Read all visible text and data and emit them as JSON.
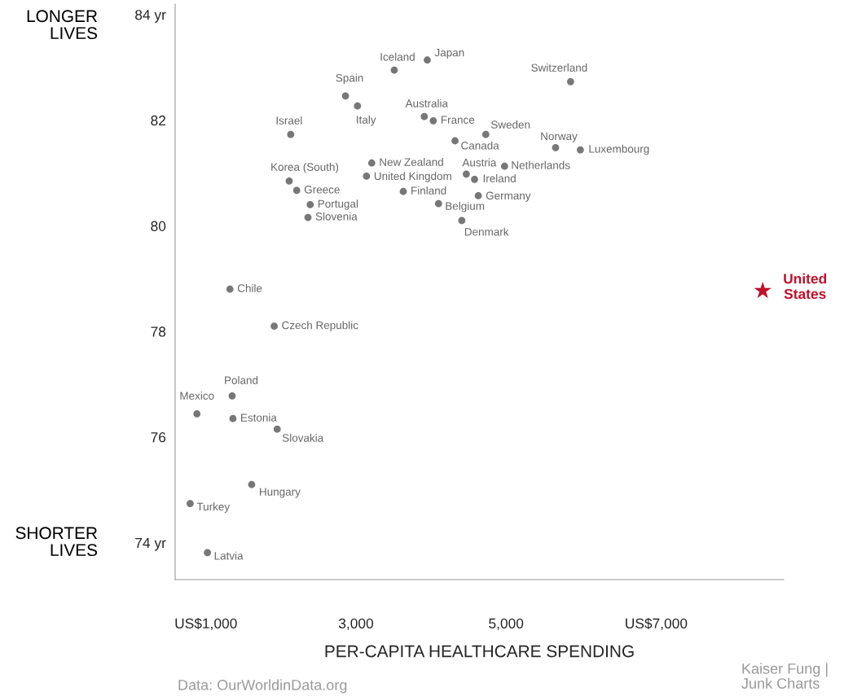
{
  "chart_data": {
    "type": "scatter",
    "xlabel": "PER-CAPITA HEALTHCARE SPENDING",
    "xlim": [
      590,
      8700
    ],
    "ylim": [
      73.3,
      84.2
    ],
    "xticks": [
      {
        "value": 1000,
        "label": "US$1,000"
      },
      {
        "value": 3000,
        "label": "3,000"
      },
      {
        "value": 5000,
        "label": "5,000"
      },
      {
        "value": 7000,
        "label": "US$7,000"
      }
    ],
    "yticks": [
      {
        "value": 74,
        "label": "74 yr"
      },
      76,
      78,
      80,
      82,
      {
        "value": 84,
        "label": "84 yr"
      }
    ],
    "grid": false,
    "legend": false,
    "marker": "circle",
    "annotations": [
      "LONGER\nLIVES",
      "SHORTER\nLIVES",
      "Data: OurWorldinData.org",
      "Kaiser Fung |\nJunk Charts"
    ],
    "series": [
      {
        "name": "Iceland",
        "color": "#777777",
        "x": [
          3510
        ],
        "values": [
          82.95
        ]
      },
      {
        "name": "Japan",
        "color": "#777777",
        "x": [
          3950
        ],
        "values": [
          83.14
        ]
      },
      {
        "name": "Switzerland",
        "color": "#777777",
        "x": [
          5860
        ],
        "values": [
          82.73
        ]
      },
      {
        "name": "Spain",
        "color": "#777777",
        "x": [
          2860
        ],
        "values": [
          82.46
        ]
      },
      {
        "name": "Italy",
        "color": "#777777",
        "x": [
          3020
        ],
        "values": [
          82.27
        ]
      },
      {
        "name": "Australia",
        "color": "#777777",
        "x": [
          3910
        ],
        "values": [
          82.07
        ]
      },
      {
        "name": "France",
        "color": "#777777",
        "x": [
          4030
        ],
        "values": [
          81.99
        ]
      },
      {
        "name": "Israel",
        "color": "#777777",
        "x": [
          2130
        ],
        "values": [
          81.73
        ]
      },
      {
        "name": "Sweden",
        "color": "#777777",
        "x": [
          4730
        ],
        "values": [
          81.73
        ]
      },
      {
        "name": "Canada",
        "color": "#777777",
        "x": [
          4320
        ],
        "values": [
          81.61
        ]
      },
      {
        "name": "Norway",
        "color": "#777777",
        "x": [
          5660
        ],
        "values": [
          81.48
        ]
      },
      {
        "name": "Luxembourg",
        "color": "#777777",
        "x": [
          5990
        ],
        "values": [
          81.44
        ]
      },
      {
        "name": "New Zealand",
        "color": "#777777",
        "x": [
          3210
        ],
        "values": [
          81.19
        ]
      },
      {
        "name": "Netherlands",
        "color": "#777777",
        "x": [
          4980
        ],
        "values": [
          81.13
        ]
      },
      {
        "name": "Austria",
        "color": "#777777",
        "x": [
          4470
        ],
        "values": [
          80.98
        ]
      },
      {
        "name": "United Kingdom",
        "color": "#777777",
        "x": [
          3140
        ],
        "values": [
          80.94
        ]
      },
      {
        "name": "Ireland",
        "color": "#777777",
        "x": [
          4580
        ],
        "values": [
          80.88
        ]
      },
      {
        "name": "Korea (South)",
        "color": "#777777",
        "x": [
          2110
        ],
        "values": [
          80.85
        ]
      },
      {
        "name": "Greece",
        "color": "#777777",
        "x": [
          2210
        ],
        "values": [
          80.67
        ]
      },
      {
        "name": "Finland",
        "color": "#777777",
        "x": [
          3630
        ],
        "values": [
          80.65
        ]
      },
      {
        "name": "Germany",
        "color": "#777777",
        "x": [
          4630
        ],
        "values": [
          80.57
        ]
      },
      {
        "name": "Belgium",
        "color": "#777777",
        "x": [
          4100
        ],
        "values": [
          80.42
        ]
      },
      {
        "name": "Portugal",
        "color": "#777777",
        "x": [
          2390
        ],
        "values": [
          80.4
        ]
      },
      {
        "name": "Slovenia",
        "color": "#777777",
        "x": [
          2360
        ],
        "values": [
          80.16
        ]
      },
      {
        "name": "Denmark",
        "color": "#777777",
        "x": [
          4410
        ],
        "values": [
          80.1
        ]
      },
      {
        "name": "Chile",
        "color": "#777777",
        "x": [
          1320
        ],
        "values": [
          78.8
        ]
      },
      {
        "name": "Czech Republic",
        "color": "#777777",
        "x": [
          1910
        ],
        "values": [
          78.1
        ]
      },
      {
        "name": "Poland",
        "color": "#777777",
        "x": [
          1350
        ],
        "values": [
          76.78
        ]
      },
      {
        "name": "Mexico",
        "color": "#777777",
        "x": [
          880
        ],
        "values": [
          76.44
        ]
      },
      {
        "name": "Estonia",
        "color": "#777777",
        "x": [
          1360
        ],
        "values": [
          76.35
        ]
      },
      {
        "name": "Slovakia",
        "color": "#777777",
        "x": [
          1950
        ],
        "values": [
          76.15
        ]
      },
      {
        "name": "Hungary",
        "color": "#777777",
        "x": [
          1610
        ],
        "values": [
          75.1
        ]
      },
      {
        "name": "Turkey",
        "color": "#777777",
        "x": [
          790
        ],
        "values": [
          74.74
        ]
      },
      {
        "name": "Latvia",
        "color": "#777777",
        "x": [
          1020
        ],
        "values": [
          73.81
        ]
      },
      {
        "name": "United States",
        "color": "#c0102a",
        "x": [
          8420
        ],
        "values": [
          78.77
        ],
        "marker": "star"
      }
    ]
  }
}
